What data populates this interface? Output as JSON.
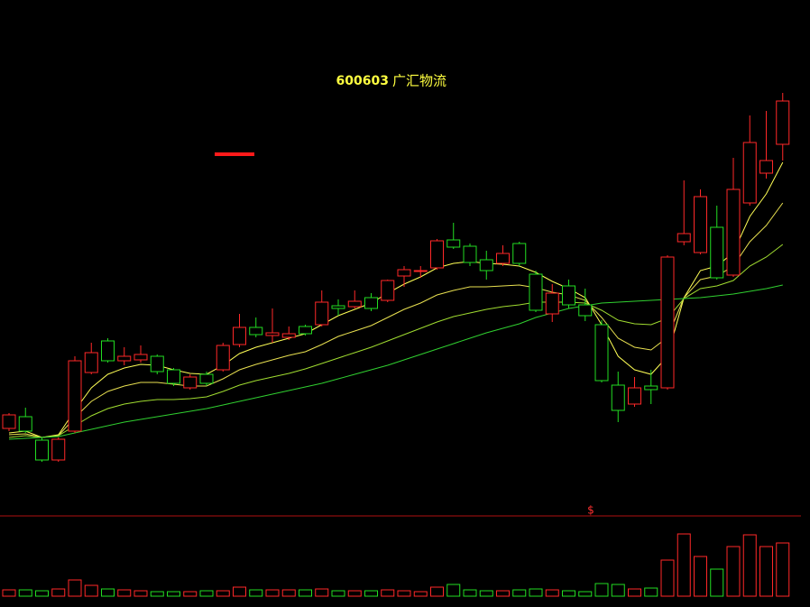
{
  "chart_data": [
    {
      "type": "candlestick",
      "title_code": "600603",
      "title_name": "广汇物流",
      "ylim": [
        0,
        570
      ],
      "up_color": "#ff2828",
      "down_color": "#22dd22",
      "open": [
        95,
        108,
        82,
        60,
        92,
        157,
        192,
        170,
        171,
        175,
        160,
        140,
        155,
        160,
        188,
        207,
        198,
        196,
        208,
        210,
        231,
        230,
        240,
        237,
        264,
        269,
        273,
        304,
        297,
        282,
        278,
        300,
        266,
        222,
        253,
        232,
        210,
        143,
        122,
        142,
        140,
        302,
        290,
        318,
        265,
        345,
        378,
        410
      ],
      "high": [
        112,
        118,
        85,
        85,
        175,
        190,
        195,
        185,
        187,
        177,
        162,
        155,
        158,
        190,
        222,
        218,
        228,
        208,
        210,
        248,
        238,
        248,
        245,
        260,
        275,
        275,
        305,
        323,
        300,
        292,
        298,
        302,
        270,
        255,
        260,
        250,
        215,
        158,
        152,
        160,
        287,
        370,
        360,
        342,
        395,
        442,
        447,
        467
      ],
      "low": [
        92,
        90,
        58,
        58,
        90,
        155,
        168,
        165,
        168,
        155,
        142,
        138,
        142,
        158,
        185,
        196,
        190,
        193,
        198,
        208,
        220,
        228,
        225,
        235,
        252,
        262,
        271,
        294,
        275,
        260,
        275,
        275,
        224,
        213,
        228,
        214,
        146,
        102,
        119,
        122,
        138,
        298,
        288,
        260,
        263,
        342,
        372,
        392
      ],
      "close": [
        110,
        92,
        60,
        83,
        170,
        179,
        170,
        175,
        177,
        158,
        145,
        152,
        145,
        187,
        207,
        199,
        201,
        200,
        200,
        235,
        228,
        236,
        228,
        259,
        271,
        270,
        303,
        296,
        279,
        270,
        289,
        278,
        226,
        245,
        232,
        220,
        148,
        115,
        140,
        138,
        285,
        311,
        352,
        262,
        360,
        412,
        392,
        458
      ],
      "ribbon": [
        {
          "color": "#ffff55",
          "values": [
            90,
            92,
            85,
            88,
            115,
            140,
            155,
            162,
            166,
            165,
            160,
            156,
            155,
            165,
            178,
            185,
            190,
            195,
            200,
            210,
            220,
            227,
            234,
            245,
            255,
            263,
            273,
            278,
            280,
            278,
            277,
            275,
            268,
            258,
            250,
            240,
            210,
            175,
            160,
            155,
            175,
            240,
            270,
            275,
            290,
            330,
            355,
            390
          ]
        },
        {
          "color": "#e8e050",
          "values": [
            88,
            89,
            85,
            87,
            107,
            125,
            136,
            142,
            146,
            146,
            144,
            142,
            142,
            150,
            160,
            166,
            171,
            176,
            180,
            188,
            197,
            203,
            209,
            218,
            227,
            234,
            243,
            248,
            252,
            252,
            253,
            254,
            251,
            246,
            243,
            237,
            218,
            195,
            185,
            182,
            196,
            240,
            260,
            264,
            275,
            302,
            320,
            345
          ]
        },
        {
          "color": "#a0dc30",
          "values": [
            85,
            87,
            85,
            87,
            98,
            109,
            117,
            122,
            125,
            127,
            127,
            128,
            130,
            136,
            143,
            148,
            152,
            156,
            161,
            167,
            173,
            179,
            185,
            192,
            199,
            206,
            213,
            219,
            223,
            227,
            230,
            232,
            235,
            235,
            235,
            234,
            226,
            215,
            211,
            210,
            217,
            239,
            250,
            253,
            259,
            275,
            285,
            299
          ]
        },
        {
          "color": "#30d030",
          "values": [
            83,
            84,
            85,
            86,
            90,
            94,
            98,
            102,
            105,
            108,
            111,
            114,
            117,
            121,
            125,
            129,
            133,
            137,
            141,
            145,
            150,
            155,
            160,
            165,
            171,
            177,
            183,
            189,
            195,
            201,
            206,
            211,
            218,
            223,
            228,
            231,
            234,
            235,
            236,
            237,
            238,
            239,
            240,
            242,
            244,
            247,
            250,
            254
          ]
        }
      ]
    },
    {
      "type": "volume",
      "annotation": "$",
      "ylim": [
        0,
        80
      ],
      "values": [
        7,
        7,
        6,
        8,
        18,
        12,
        8,
        7,
        6,
        5,
        5,
        5,
        6,
        6,
        10,
        7,
        7,
        7,
        7,
        8,
        6,
        6,
        6,
        7,
        6,
        5,
        10,
        13,
        7,
        6,
        6,
        7,
        8,
        7,
        6,
        5,
        14,
        13,
        8,
        9,
        40,
        69,
        44,
        30,
        55,
        68,
        55,
        59
      ]
    }
  ]
}
